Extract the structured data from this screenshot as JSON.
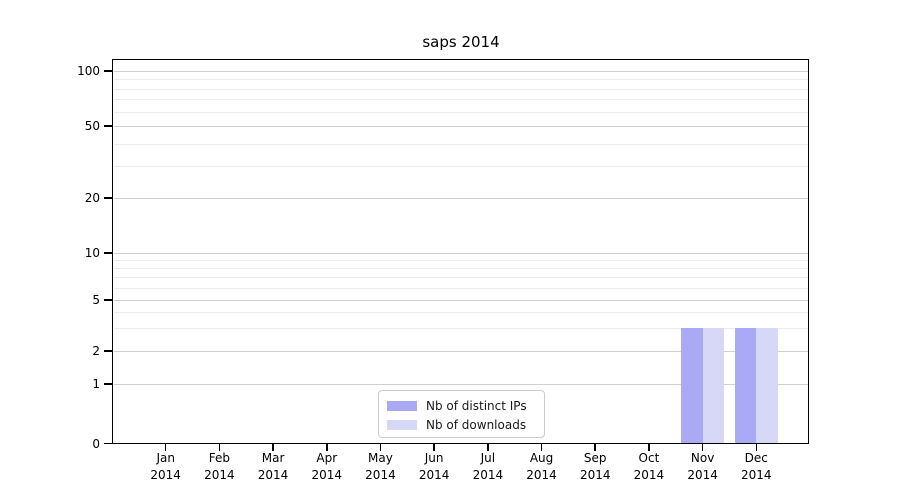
{
  "chart_data": {
    "type": "bar",
    "title": "saps 2014",
    "categories": [
      "Jan 2014",
      "Feb 2014",
      "Mar 2014",
      "Apr 2014",
      "May 2014",
      "Jun 2014",
      "Jul 2014",
      "Aug 2014",
      "Sep 2014",
      "Oct 2014",
      "Nov 2014",
      "Dec 2014"
    ],
    "series": [
      {
        "name": "Nb of distinct IPs",
        "color": "#a9a9f6",
        "values": [
          0,
          0,
          0,
          0,
          0,
          0,
          0,
          0,
          0,
          0,
          3,
          3
        ]
      },
      {
        "name": "Nb of downloads",
        "color": "#d7d7f8",
        "values": [
          0,
          0,
          0,
          0,
          0,
          0,
          0,
          0,
          0,
          0,
          3,
          3
        ]
      }
    ],
    "xlabel": "",
    "ylabel": "",
    "y_axis": {
      "scale": "symlog",
      "ticks": [
        0,
        1,
        2,
        5,
        10,
        20,
        50,
        100
      ],
      "minor_gridlines": [
        3,
        4,
        6,
        7,
        8,
        9,
        30,
        40,
        60,
        70,
        80,
        90
      ],
      "range": [
        0,
        120
      ]
    },
    "grid": {
      "major_color": "#d0d0d0",
      "minor_color": "#ebebeb"
    },
    "legend": {
      "position": "lower center",
      "border_color": "#cccccc"
    }
  }
}
